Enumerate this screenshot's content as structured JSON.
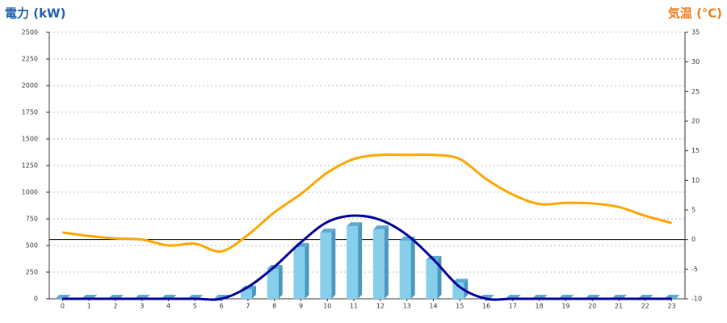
{
  "chart_data": {
    "type": "combo",
    "y_title": "電力 (kW)",
    "y2_title": "気温 (℃)",
    "categories": [
      "0",
      "1",
      "2",
      "3",
      "4",
      "5",
      "6",
      "7",
      "8",
      "9",
      "10",
      "11",
      "12",
      "13",
      "14",
      "15",
      "16",
      "17",
      "18",
      "19",
      "20",
      "21",
      "22",
      "23"
    ],
    "series": [
      {
        "type": "bar",
        "color": "#87ceeb",
        "values": [
          0,
          0,
          0,
          0,
          0,
          0,
          0,
          85,
          280,
          485,
          620,
          680,
          650,
          545,
          365,
          150,
          0,
          0,
          0,
          0,
          0,
          0,
          0,
          0
        ]
      },
      {
        "type": "line",
        "color": "#000099",
        "values": [
          0,
          0,
          0,
          0,
          0,
          0,
          0,
          110,
          300,
          530,
          720,
          780,
          740,
          600,
          370,
          110,
          0,
          0,
          0,
          0,
          0,
          0,
          0,
          0
        ]
      },
      {
        "type": "line",
        "axis": "y2",
        "color": "#ffa500",
        "values": [
          1.2,
          0.6,
          0.2,
          0,
          -1.0,
          -0.7,
          -2.0,
          0.8,
          4.6,
          7.7,
          11.3,
          13.6,
          14.3,
          14.3,
          14.3,
          13.6,
          10.2,
          7.6,
          6.0,
          6.2,
          6.1,
          5.5,
          4.0,
          2.8
        ]
      }
    ],
    "ylim": [
      0,
      2500
    ],
    "yticks": [
      0,
      250,
      500,
      750,
      1000,
      1250,
      1500,
      1750,
      2000,
      2250,
      2500
    ],
    "y2lim": [
      -10,
      35
    ],
    "y2ticks": [
      -10,
      -5,
      0,
      5,
      10,
      15,
      20,
      25,
      30,
      35
    ],
    "grid": true,
    "y2_reference_line": 0
  }
}
